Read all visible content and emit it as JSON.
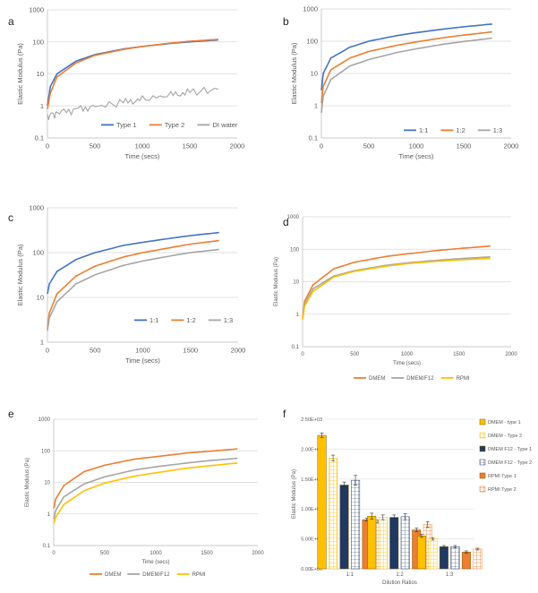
{
  "chart_data": [
    {
      "panel": "a",
      "type": "line",
      "scale_y": "log",
      "xlabel": "Time (secs)",
      "ylabel": "Elastic Modulus (Pa)",
      "xlim": [
        0,
        2000
      ],
      "ylim": [
        0.1,
        1000
      ],
      "x_ticks": [
        "0",
        "500",
        "1000",
        "1500",
        "2000"
      ],
      "y_ticks": [
        "0.1",
        "1",
        "10",
        "100",
        "1000"
      ],
      "legend_position": "bottom-right",
      "series": [
        {
          "name": "Type 1",
          "color": "#4472C4",
          "x": [
            0,
            30,
            100,
            300,
            500,
            800,
            1000,
            1300,
            1500,
            1800
          ],
          "values": [
            1,
            4,
            10,
            25,
            40,
            60,
            72,
            90,
            100,
            115
          ]
        },
        {
          "name": "Type 2",
          "color": "#ED7D31",
          "x": [
            0,
            30,
            100,
            300,
            500,
            800,
            1000,
            1300,
            1500,
            1800
          ],
          "values": [
            0.8,
            2.5,
            8,
            22,
            38,
            58,
            72,
            92,
            105,
            120
          ]
        },
        {
          "name": "DI water",
          "color": "#A5A5A5",
          "x": [
            0,
            100,
            300,
            500,
            800,
            1000,
            1300,
            1500,
            1800
          ],
          "values": [
            0.5,
            0.6,
            0.8,
            0.95,
            1.3,
            1.6,
            2.2,
            2.7,
            3.3
          ],
          "noisy": true
        }
      ]
    },
    {
      "panel": "b",
      "type": "line",
      "scale_y": "log",
      "xlabel": "Time (secs)",
      "ylabel": "Elastic Modulus (Pa)",
      "xlim": [
        0,
        2000
      ],
      "ylim": [
        0.1,
        1000
      ],
      "x_ticks": [
        "0",
        "500",
        "1000",
        "1500",
        "2000"
      ],
      "y_ticks": [
        "0.1",
        "1",
        "10",
        "100",
        "1000"
      ],
      "legend_position": "bottom-right",
      "series": [
        {
          "name": "1:1",
          "color": "#4472C4",
          "x": [
            0,
            20,
            100,
            300,
            500,
            800,
            1000,
            1300,
            1500,
            1800
          ],
          "values": [
            3,
            10,
            30,
            65,
            100,
            150,
            185,
            240,
            280,
            340
          ]
        },
        {
          "name": "1:2",
          "color": "#ED7D31",
          "x": [
            0,
            20,
            100,
            300,
            500,
            800,
            1000,
            1300,
            1500,
            1800
          ],
          "values": [
            1.2,
            4,
            13,
            30,
            48,
            75,
            95,
            130,
            155,
            195
          ]
        },
        {
          "name": "1:3",
          "color": "#A5A5A5",
          "x": [
            0,
            20,
            100,
            300,
            500,
            800,
            1000,
            1300,
            1500,
            1800
          ],
          "values": [
            0.6,
            2,
            6.5,
            17,
            27,
            45,
            58,
            82,
            98,
            125
          ]
        }
      ]
    },
    {
      "panel": "c",
      "type": "line",
      "scale_y": "log",
      "xlabel": "Time (secs)",
      "ylabel": "Elastic Modulus (Pa)",
      "xlim": [
        0,
        2000
      ],
      "ylim": [
        1,
        1000
      ],
      "x_ticks": [
        "0",
        "500",
        "1000",
        "1500",
        "2000"
      ],
      "y_ticks": [
        "1",
        "10",
        "100",
        "1000"
      ],
      "legend_position": "bottom-right",
      "series": [
        {
          "name": "1:1",
          "color": "#4472C4",
          "x": [
            0,
            20,
            100,
            300,
            500,
            800,
            1000,
            1300,
            1500,
            1800
          ],
          "values": [
            12,
            20,
            38,
            70,
            100,
            145,
            170,
            210,
            240,
            280
          ]
        },
        {
          "name": "1:2",
          "color": "#ED7D31",
          "x": [
            0,
            20,
            100,
            300,
            500,
            800,
            1000,
            1300,
            1500,
            1800
          ],
          "values": [
            2,
            4.5,
            12,
            30,
            50,
            80,
            100,
            130,
            155,
            185
          ]
        },
        {
          "name": "1:3",
          "color": "#A5A5A5",
          "x": [
            0,
            20,
            100,
            300,
            500,
            800,
            1000,
            1300,
            1500,
            1800
          ],
          "values": [
            1.8,
            3.5,
            8,
            20,
            32,
            52,
            65,
            85,
            100,
            118
          ]
        }
      ]
    },
    {
      "panel": "d",
      "type": "line",
      "scale_y": "log",
      "xlabel": "Time (secs)",
      "ylabel": "Elastic Modulus (Pa)",
      "xlim": [
        0,
        2000
      ],
      "ylim": [
        0.1,
        1000
      ],
      "x_ticks": [
        "0",
        "500",
        "1000",
        "1500",
        "2000"
      ],
      "y_ticks": [
        "0.1",
        "1",
        "10",
        "100",
        "1000"
      ],
      "legend_position": "bottom",
      "series": [
        {
          "name": "DMEM",
          "color": "#ED7D31",
          "x": [
            0,
            20,
            100,
            300,
            500,
            800,
            1000,
            1300,
            1500,
            1800
          ],
          "values": [
            0.8,
            2.5,
            8,
            25,
            40,
            60,
            72,
            92,
            105,
            125
          ]
        },
        {
          "name": "DMEM/F12",
          "color": "#A5A5A5",
          "x": [
            0,
            20,
            100,
            300,
            500,
            800,
            1000,
            1300,
            1500,
            1800
          ],
          "values": [
            0.7,
            2,
            6,
            15,
            22,
            32,
            38,
            46,
            51,
            58
          ]
        },
        {
          "name": "RPMI",
          "color": "#FFC000",
          "x": [
            0,
            20,
            100,
            300,
            500,
            800,
            1000,
            1300,
            1500,
            1800
          ],
          "values": [
            0.7,
            1.8,
            5,
            14,
            21,
            30,
            36,
            43,
            47,
            52
          ]
        }
      ]
    },
    {
      "panel": "e",
      "type": "line",
      "scale_y": "log",
      "xlabel": "Time (secs)",
      "ylabel": "Elastic Modulus (Pa)",
      "xlim": [
        0,
        2000
      ],
      "ylim": [
        0.1,
        1000
      ],
      "x_ticks": [
        "0",
        "500",
        "1000",
        "1500",
        "2000"
      ],
      "y_ticks": [
        "0.1",
        "1",
        "10",
        "100",
        "1000"
      ],
      "legend_position": "bottom",
      "series": [
        {
          "name": "DMEM",
          "color": "#ED7D31",
          "x": [
            0,
            20,
            100,
            300,
            500,
            800,
            1000,
            1300,
            1500,
            1800
          ],
          "values": [
            1.5,
            3,
            8,
            22,
            35,
            55,
            65,
            85,
            95,
            115
          ]
        },
        {
          "name": "DMEM/F12",
          "color": "#A5A5A5",
          "x": [
            0,
            20,
            100,
            300,
            500,
            800,
            1000,
            1300,
            1500,
            1800
          ],
          "values": [
            0.7,
            1.3,
            3.5,
            9,
            15,
            25,
            31,
            41,
            48,
            58
          ]
        },
        {
          "name": "RPMI",
          "color": "#FFC000",
          "x": [
            0,
            20,
            100,
            300,
            500,
            800,
            1000,
            1300,
            1500,
            1800
          ],
          "values": [
            0.5,
            0.8,
            2,
            5.5,
            9.5,
            16,
            20,
            28,
            33,
            41
          ]
        }
      ]
    },
    {
      "panel": "f",
      "type": "bar",
      "xlabel": "Dilution Ratios",
      "ylabel": "Elastic Modulus (Pa)",
      "ylim": [
        0,
        2500
      ],
      "y_ticks": [
        "0.00E+00",
        "5.00E+02",
        "1.00E+03",
        "1.50E+03",
        "2.00E+03",
        "2.50E+03"
      ],
      "legend_position": "right",
      "categories": [
        "1:1",
        "1:2",
        "1:3"
      ],
      "series": [
        {
          "name": "DMEM - type 1",
          "color": "#FFC000",
          "style": "solid",
          "values": [
            2230,
            880,
            550
          ],
          "errors": [
            40,
            50,
            25
          ]
        },
        {
          "name": "DMEM - Type 2",
          "color": "#FFC000",
          "style": "hatch",
          "values": [
            1850,
            860,
            500
          ],
          "errors": [
            50,
            40,
            20
          ]
        },
        {
          "name": "DMEM F12 - Type 1",
          "color": "#1F3864",
          "style": "solid",
          "values": [
            1400,
            860,
            370
          ],
          "errors": [
            50,
            40,
            20
          ]
        },
        {
          "name": "DMEM F12 - Type 2",
          "color": "#1F3864",
          "style": "hatch",
          "values": [
            1480,
            870,
            370
          ],
          "errors": [
            80,
            50,
            20
          ]
        },
        {
          "name": "RPMI Type 1",
          "color": "#ED7D31",
          "style": "solid",
          "values": [
            820,
            650,
            280
          ],
          "errors": [
            25,
            30,
            20
          ]
        },
        {
          "name": "RPMI Type 2",
          "color": "#ED7D31",
          "style": "hatch",
          "values": [
            790,
            740,
            330
          ],
          "errors": [
            25,
            50,
            15
          ]
        }
      ]
    }
  ]
}
